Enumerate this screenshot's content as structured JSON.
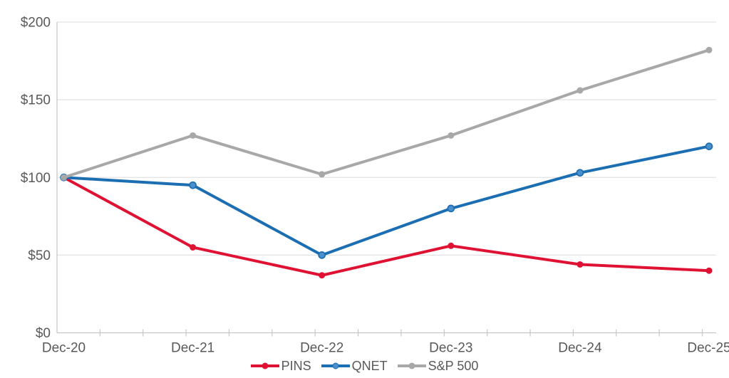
{
  "chart_data": {
    "type": "line",
    "title": "",
    "categories": [
      "Dec-20",
      "Dec-21",
      "Dec-22",
      "Dec-23",
      "Dec-24",
      "Dec-25"
    ],
    "series": [
      {
        "name": "PINS",
        "color": "#E01233",
        "marker_fill": "#E01233",
        "values": [
          100,
          55,
          37,
          56,
          44,
          40
        ]
      },
      {
        "name": "QNET",
        "color": "#1C6EB2",
        "marker_fill": "#4A90CC",
        "marker_stroke": "#1C6EB2",
        "values": [
          100,
          95,
          50,
          80,
          103,
          120
        ]
      },
      {
        "name": "S&P 500",
        "color": "#A8A8A8",
        "marker_fill": "#A8A8A8",
        "values": [
          100,
          127,
          102,
          127,
          156,
          182
        ]
      }
    ],
    "ylim": [
      0,
      200
    ],
    "ytick_values": [
      0,
      50,
      100,
      150,
      200
    ],
    "ytick_labels": [
      "$0",
      "$50",
      "$100",
      "$150",
      "$200"
    ],
    "grid": "horizontal",
    "legend_position": "bottom-center",
    "colors": {
      "gridline": "#E2E2E2",
      "axis": "#C6C6C6",
      "tick": "#C6C6C6",
      "label": "#595959"
    }
  }
}
